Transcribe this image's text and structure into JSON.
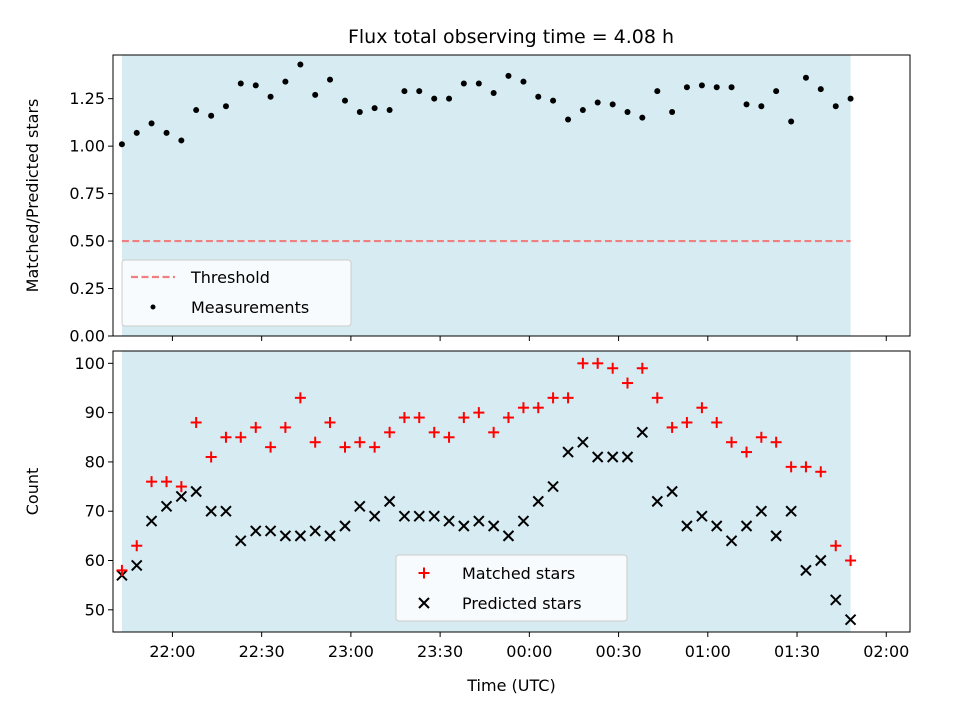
{
  "title": "Flux total observing time = 4.08 h",
  "colors": {
    "shade": "#add8e6",
    "threshold": "#f08080",
    "measurements": "#000000",
    "matched": "#ff0000",
    "predicted": "#000000"
  },
  "x_axis": {
    "label": "Time (UTC)",
    "range_hours": [
      21.667,
      26.133
    ],
    "ticks": [
      {
        "h": 22.0,
        "label": "22:00"
      },
      {
        "h": 22.5,
        "label": "22:30"
      },
      {
        "h": 23.0,
        "label": "23:00"
      },
      {
        "h": 23.5,
        "label": "23:30"
      },
      {
        "h": 24.0,
        "label": "00:00"
      },
      {
        "h": 24.5,
        "label": "00:30"
      },
      {
        "h": 25.0,
        "label": "01:00"
      },
      {
        "h": 25.5,
        "label": "01:30"
      },
      {
        "h": 26.0,
        "label": "02:00"
      }
    ],
    "shade_range_hours": [
      21.717,
      25.8
    ]
  },
  "chart_data": [
    {
      "type": "scatter",
      "title": "Flux total observing time = 4.08 h",
      "ylabel": "Matched/Predicted stars",
      "ylim": [
        0,
        1.48
      ],
      "yticks": [
        {
          "v": 0.0,
          "label": "0.00"
        },
        {
          "v": 0.25,
          "label": "0.25"
        },
        {
          "v": 0.5,
          "label": "0.50"
        },
        {
          "v": 0.75,
          "label": "0.75"
        },
        {
          "v": 1.0,
          "label": "1.00"
        },
        {
          "v": 1.25,
          "label": "1.25"
        }
      ],
      "threshold": 0.5,
      "legend": {
        "position": "lower-left",
        "entries": [
          "Threshold",
          "Measurements"
        ]
      },
      "series": [
        {
          "name": "Measurements",
          "x": [
            21.717,
            21.8,
            21.883,
            21.967,
            22.05,
            22.133,
            22.217,
            22.3,
            22.383,
            22.467,
            22.55,
            22.633,
            22.717,
            22.8,
            22.883,
            22.967,
            23.05,
            23.133,
            23.217,
            23.3,
            23.383,
            23.467,
            23.55,
            23.633,
            23.717,
            23.8,
            23.883,
            23.967,
            24.05,
            24.133,
            24.217,
            24.3,
            24.383,
            24.467,
            24.55,
            24.633,
            24.717,
            24.8,
            24.883,
            24.967,
            25.05,
            25.133,
            25.217,
            25.3,
            25.383,
            25.467,
            25.55,
            25.633,
            25.717,
            25.8
          ],
          "y": [
            1.01,
            1.07,
            1.12,
            1.07,
            1.03,
            1.19,
            1.16,
            1.21,
            1.33,
            1.32,
            1.26,
            1.34,
            1.43,
            1.27,
            1.35,
            1.24,
            1.18,
            1.2,
            1.19,
            1.29,
            1.29,
            1.25,
            1.25,
            1.33,
            1.33,
            1.28,
            1.37,
            1.34,
            1.26,
            1.24,
            1.14,
            1.19,
            1.23,
            1.22,
            1.18,
            1.15,
            1.29,
            1.18,
            1.31,
            1.32,
            1.31,
            1.31,
            1.22,
            1.21,
            1.29,
            1.13,
            1.36,
            1.3,
            1.21,
            1.25
          ]
        }
      ]
    },
    {
      "type": "scatter",
      "ylabel": "Count",
      "ylim": [
        45.5,
        102.5
      ],
      "yticks": [
        {
          "v": 50,
          "label": "50"
        },
        {
          "v": 60,
          "label": "60"
        },
        {
          "v": 70,
          "label": "70"
        },
        {
          "v": 80,
          "label": "80"
        },
        {
          "v": 90,
          "label": "90"
        },
        {
          "v": 100,
          "label": "100"
        }
      ],
      "legend": {
        "position": "lower-center",
        "entries": [
          "Matched stars",
          "Predicted stars"
        ]
      },
      "series": [
        {
          "name": "Matched stars",
          "marker": "plus",
          "x": [
            21.717,
            21.8,
            21.883,
            21.967,
            22.05,
            22.133,
            22.217,
            22.3,
            22.383,
            22.467,
            22.55,
            22.633,
            22.717,
            22.8,
            22.883,
            22.967,
            23.05,
            23.133,
            23.217,
            23.3,
            23.383,
            23.467,
            23.55,
            23.633,
            23.717,
            23.8,
            23.883,
            23.967,
            24.05,
            24.133,
            24.217,
            24.3,
            24.383,
            24.467,
            24.55,
            24.633,
            24.717,
            24.8,
            24.883,
            24.967,
            25.05,
            25.133,
            25.217,
            25.3,
            25.383,
            25.467,
            25.55,
            25.633,
            25.717,
            25.8
          ],
          "y": [
            58,
            63,
            76,
            76,
            75,
            88,
            81,
            85,
            85,
            87,
            83,
            87,
            93,
            84,
            88,
            83,
            84,
            83,
            86,
            89,
            89,
            86,
            85,
            89,
            90,
            86,
            89,
            91,
            91,
            93,
            93,
            100,
            100,
            99,
            96,
            99,
            93,
            87,
            88,
            91,
            88,
            84,
            82,
            85,
            84,
            79,
            79,
            78,
            63,
            60
          ]
        },
        {
          "name": "Predicted stars",
          "marker": "x",
          "x": [
            21.717,
            21.8,
            21.883,
            21.967,
            22.05,
            22.133,
            22.217,
            22.3,
            22.383,
            22.467,
            22.55,
            22.633,
            22.717,
            22.8,
            22.883,
            22.967,
            23.05,
            23.133,
            23.217,
            23.3,
            23.383,
            23.467,
            23.55,
            23.633,
            23.717,
            23.8,
            23.883,
            23.967,
            24.05,
            24.133,
            24.217,
            24.3,
            24.383,
            24.467,
            24.55,
            24.633,
            24.717,
            24.8,
            24.883,
            24.967,
            25.05,
            25.133,
            25.217,
            25.3,
            25.383,
            25.467,
            25.55,
            25.633,
            25.717,
            25.8
          ],
          "y": [
            57,
            59,
            68,
            71,
            73,
            74,
            70,
            70,
            64,
            66,
            66,
            65,
            65,
            66,
            65,
            67,
            71,
            69,
            72,
            69,
            69,
            69,
            68,
            67,
            68,
            67,
            65,
            68,
            72,
            75,
            82,
            84,
            81,
            81,
            81,
            86,
            72,
            74,
            67,
            69,
            67,
            64,
            67,
            70,
            65,
            70,
            58,
            60,
            52,
            48
          ]
        }
      ]
    }
  ]
}
